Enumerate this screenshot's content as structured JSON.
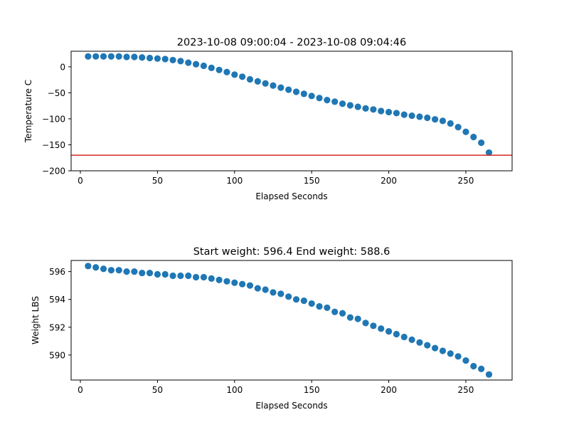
{
  "chart_data": [
    {
      "type": "scatter",
      "title": "2023-10-08 09:00:04 - 2023-10-08 09:04:46",
      "xlabel": "Elapsed Seconds",
      "ylabel": "Temperature C",
      "xlim": [
        -6,
        280
      ],
      "ylim": [
        -200,
        30
      ],
      "xticks": [
        0,
        50,
        100,
        150,
        200,
        250
      ],
      "yticks": [
        0,
        -50,
        -100,
        -150,
        -200
      ],
      "ytick_labels": [
        "0",
        "−50",
        "−100",
        "−150",
        "−200"
      ],
      "grid": false,
      "marker_color": "#1f77b4",
      "hline": {
        "y": -170,
        "color": "#d62728"
      },
      "series": [
        {
          "x": [
            5,
            10,
            15,
            20,
            25,
            30,
            35,
            40,
            45,
            50,
            55,
            60,
            65,
            70,
            75,
            80,
            85,
            90,
            95,
            100,
            105,
            110,
            115,
            120,
            125,
            130,
            135,
            140,
            145,
            150,
            155,
            160,
            165,
            170,
            175,
            180,
            185,
            190,
            195,
            200,
            205,
            210,
            215,
            220,
            225,
            230,
            235,
            240,
            245,
            250,
            255,
            260,
            265
          ],
          "y": [
            20,
            20,
            20,
            20,
            20,
            19,
            19,
            18,
            17,
            16,
            15,
            13,
            11,
            8,
            5,
            2,
            -2,
            -6,
            -10,
            -15,
            -19,
            -24,
            -28,
            -32,
            -36,
            -40,
            -44,
            -48,
            -52,
            -56,
            -60,
            -64,
            -67,
            -71,
            -74,
            -77,
            -80,
            -82,
            -85,
            -87,
            -89,
            -92,
            -94,
            -96,
            -98,
            -101,
            -104,
            -109,
            -116,
            -125,
            -135,
            -146,
            -165
          ]
        }
      ]
    },
    {
      "type": "scatter",
      "title": "Start weight: 596.4 End weight: 588.6",
      "xlabel": "Elapsed Seconds",
      "ylabel": "Weight LBS",
      "xlim": [
        -6,
        280
      ],
      "ylim": [
        588.2,
        596.8
      ],
      "xticks": [
        0,
        50,
        100,
        150,
        200,
        250
      ],
      "yticks": [
        590,
        592,
        594,
        596
      ],
      "grid": false,
      "marker_color": "#1f77b4",
      "series": [
        {
          "x": [
            5,
            10,
            15,
            20,
            25,
            30,
            35,
            40,
            45,
            50,
            55,
            60,
            65,
            70,
            75,
            80,
            85,
            90,
            95,
            100,
            105,
            110,
            115,
            120,
            125,
            130,
            135,
            140,
            145,
            150,
            155,
            160,
            165,
            170,
            175,
            180,
            185,
            190,
            195,
            200,
            205,
            210,
            215,
            220,
            225,
            230,
            235,
            240,
            245,
            250,
            255,
            260,
            265
          ],
          "y": [
            596.4,
            596.3,
            596.2,
            596.1,
            596.1,
            596.0,
            596.0,
            595.9,
            595.9,
            595.8,
            595.8,
            595.7,
            595.7,
            595.7,
            595.6,
            595.6,
            595.5,
            595.4,
            595.3,
            595.2,
            595.1,
            595.0,
            594.8,
            594.7,
            594.5,
            594.4,
            594.2,
            594.0,
            593.9,
            593.7,
            593.5,
            593.4,
            593.1,
            593.0,
            592.7,
            592.6,
            592.3,
            592.1,
            591.9,
            591.7,
            591.5,
            591.3,
            591.1,
            590.9,
            590.7,
            590.5,
            590.3,
            590.1,
            589.9,
            589.6,
            589.2,
            589.0,
            588.6
          ]
        }
      ]
    }
  ]
}
